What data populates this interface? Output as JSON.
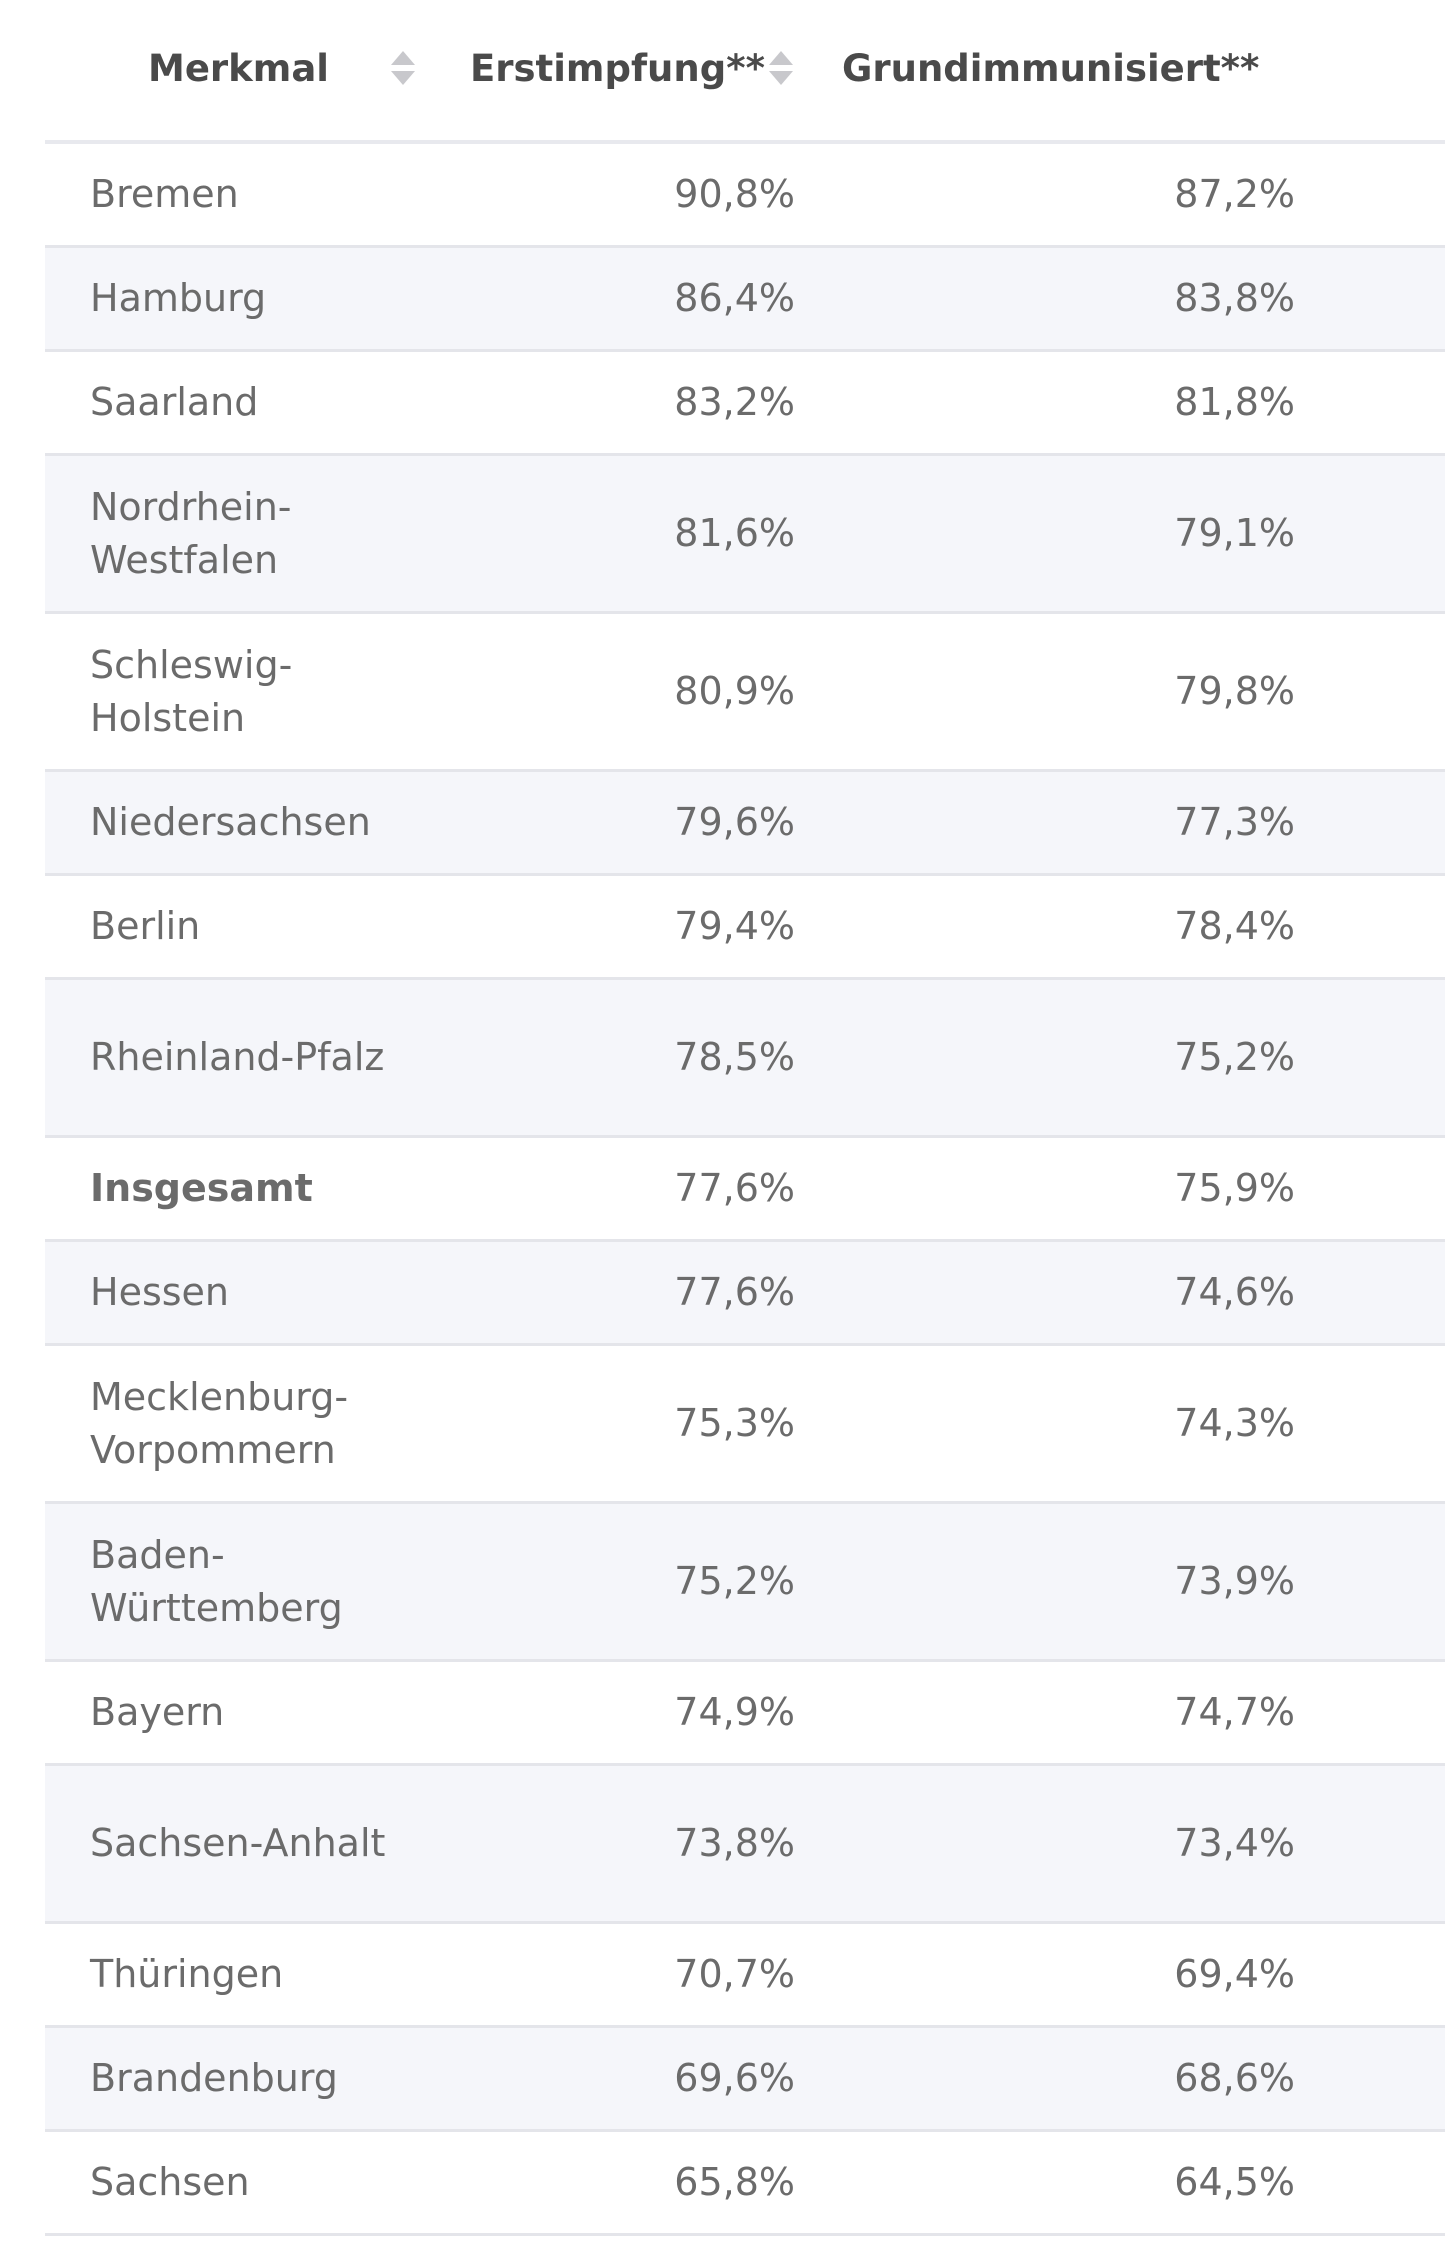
{
  "table": {
    "headers": {
      "col1": "Merkmal",
      "col2": "Erstimpfung**",
      "col3": "Grundimmunisiert**"
    },
    "rows": [
      {
        "name": "Bremen",
        "erst": "90,8%",
        "grund": "87,2%"
      },
      {
        "name": "Hamburg",
        "erst": "86,4%",
        "grund": "83,8%"
      },
      {
        "name": "Saarland",
        "erst": "83,2%",
        "grund": "81,8%"
      },
      {
        "name": "Nordrhein-Westfalen",
        "erst": "81,6%",
        "grund": "79,1%"
      },
      {
        "name": "Schleswig-Holstein",
        "erst": "80,9%",
        "grund": "79,8%"
      },
      {
        "name": "Niedersachsen",
        "erst": "79,6%",
        "grund": "77,3%"
      },
      {
        "name": "Berlin",
        "erst": "79,4%",
        "grund": "78,4%"
      },
      {
        "name": "Rheinland-Pfalz",
        "erst": "78,5%",
        "grund": "75,2%"
      },
      {
        "name": "Insgesamt",
        "erst": "77,6%",
        "grund": "75,9%"
      },
      {
        "name": "Hessen",
        "erst": "77,6%",
        "grund": "74,6%"
      },
      {
        "name": "Mecklenburg-Vorpommern",
        "erst": "75,3%",
        "grund": "74,3%"
      },
      {
        "name": "Baden-Württemberg",
        "erst": "75,2%",
        "grund": "73,9%"
      },
      {
        "name": "Bayern",
        "erst": "74,9%",
        "grund": "74,7%"
      },
      {
        "name": "Sachsen-Anhalt",
        "erst": "73,8%",
        "grund": "73,4%"
      },
      {
        "name": "Thüringen",
        "erst": "70,7%",
        "grund": "69,4%"
      },
      {
        "name": "Brandenburg",
        "erst": "69,6%",
        "grund": "68,6%"
      },
      {
        "name": "Sachsen",
        "erst": "65,8%",
        "grund": "64,5%"
      }
    ]
  },
  "icons": {
    "sort": "sort-icon"
  },
  "colors": {
    "alt_row_background": "#f5f6fa",
    "row_border": "#e4e5ea",
    "header_text": "#4a4a4a",
    "cell_text": "#6b6b6b"
  }
}
